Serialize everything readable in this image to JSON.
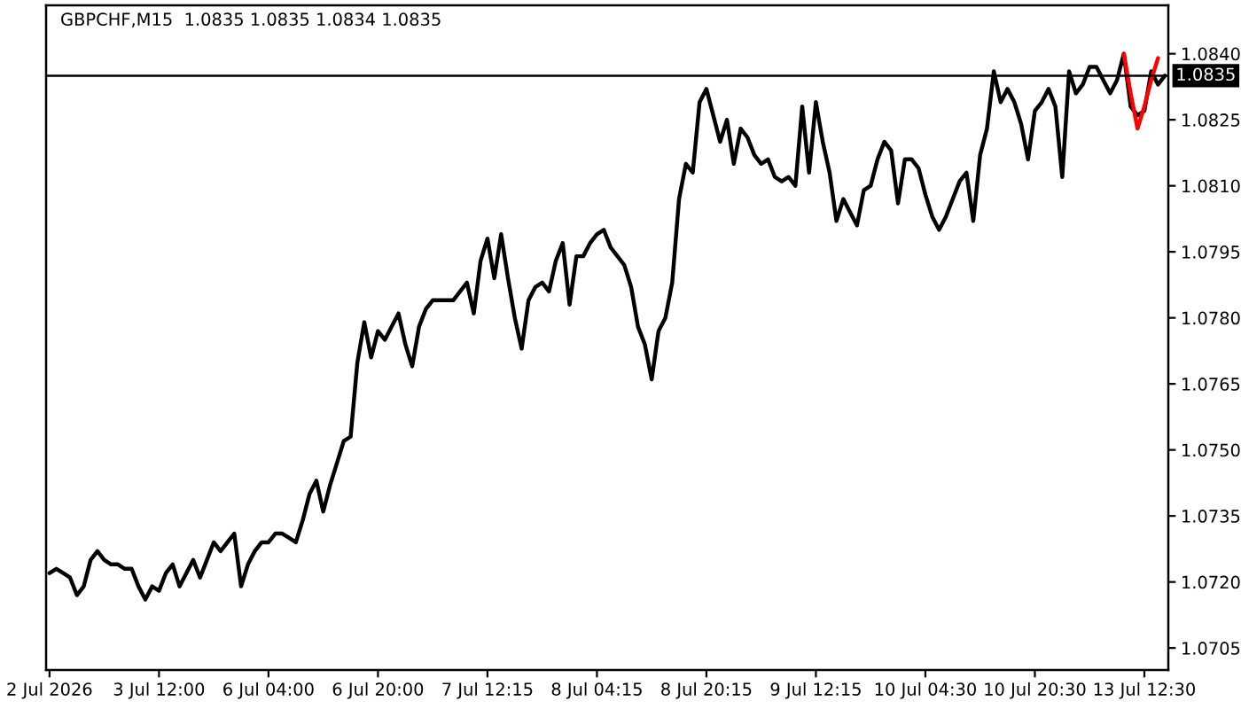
{
  "chart_data": {
    "type": "line",
    "title": "GBPCHF,M15  1.0835 1.0835 1.0834 1.0835",
    "line_style": "solid",
    "categories": [
      "2 Jul 2026",
      null,
      null,
      null,
      null,
      null,
      null,
      null,
      null,
      null,
      null,
      null,
      null,
      null,
      null,
      null,
      "3 Jul 12:00",
      null,
      null,
      null,
      null,
      null,
      null,
      null,
      null,
      null,
      null,
      null,
      null,
      null,
      null,
      null,
      "6 Jul 04:00",
      null,
      null,
      null,
      null,
      null,
      null,
      null,
      null,
      null,
      null,
      null,
      null,
      null,
      null,
      null,
      "6 Jul 20:00",
      null,
      null,
      null,
      null,
      null,
      null,
      null,
      null,
      null,
      null,
      null,
      null,
      null,
      null,
      null,
      "7 Jul 12:15",
      null,
      null,
      null,
      null,
      null,
      null,
      null,
      null,
      null,
      null,
      null,
      null,
      null,
      null,
      null,
      "8 Jul 04:15",
      null,
      null,
      null,
      null,
      null,
      null,
      null,
      null,
      null,
      null,
      null,
      null,
      null,
      null,
      null,
      "8 Jul 20:15",
      null,
      null,
      null,
      null,
      null,
      null,
      null,
      null,
      null,
      null,
      null,
      null,
      null,
      null,
      null,
      "9 Jul 12:15",
      null,
      null,
      null,
      null,
      null,
      null,
      null,
      null,
      null,
      null,
      null,
      null,
      null,
      null,
      null,
      "10 Jul 04:30",
      null,
      null,
      null,
      null,
      null,
      null,
      null,
      null,
      null,
      null,
      null,
      null,
      null,
      null,
      null,
      "10 Jul 20:30",
      null,
      null,
      null,
      null,
      null,
      null,
      null,
      null,
      null,
      null,
      null,
      null,
      null,
      null,
      null,
      "13 Jul 12:30",
      null,
      null,
      null
    ],
    "ylim": [
      1.07,
      1.0851
    ],
    "yticks": [
      {
        "value": 1.0705,
        "label": "1.0705"
      },
      {
        "value": 1.072,
        "label": "1.0720"
      },
      {
        "value": 1.0735,
        "label": "1.0735"
      },
      {
        "value": 1.075,
        "label": "1.0750"
      },
      {
        "value": 1.0765,
        "label": "1.0765"
      },
      {
        "value": 1.078,
        "label": "1.0780"
      },
      {
        "value": 1.0795,
        "label": "1.0795"
      },
      {
        "value": 1.081,
        "label": "1.0810"
      },
      {
        "value": 1.0825,
        "label": "1.0825"
      },
      {
        "value": 1.084,
        "label": "1.0840"
      }
    ],
    "ref_lines": [
      {
        "axis": "y",
        "value": 1.0835,
        "label": "1.0835",
        "color": "#000000"
      }
    ],
    "series": [
      {
        "color": "#000000",
        "values": [
          1.0722,
          1.0723,
          1.0722,
          1.0721,
          1.0717,
          1.0719,
          1.0725,
          1.0727,
          1.0725,
          1.0724,
          1.0724,
          1.0723,
          1.0723,
          1.0719,
          1.0716,
          1.0719,
          1.0718,
          1.0722,
          1.0724,
          1.0719,
          1.0722,
          1.0725,
          1.0721,
          1.0725,
          1.0729,
          1.0727,
          1.0729,
          1.0731,
          1.0719,
          1.0724,
          1.0727,
          1.0729,
          1.0729,
          1.0731,
          1.0731,
          1.073,
          1.0729,
          1.0734,
          1.074,
          1.0743,
          1.0736,
          1.0742,
          1.0747,
          1.0752,
          1.0753,
          1.077,
          1.0779,
          1.0771,
          1.0777,
          1.0775,
          1.0778,
          1.0781,
          1.0774,
          1.0769,
          1.0778,
          1.0782,
          1.0784,
          1.0784,
          1.0784,
          1.0784,
          1.0786,
          1.0788,
          1.0781,
          1.0793,
          1.0798,
          1.0789,
          1.0799,
          1.0789,
          1.078,
          1.0773,
          1.0784,
          1.0787,
          1.0788,
          1.0786,
          1.0793,
          1.0797,
          1.0783,
          1.0794,
          1.0794,
          1.0797,
          1.0799,
          1.08,
          1.0796,
          1.0794,
          1.0792,
          1.0787,
          1.0778,
          1.0774,
          1.0766,
          1.0777,
          1.078,
          1.0788,
          1.0807,
          1.0815,
          1.0813,
          1.0829,
          1.0832,
          1.0826,
          1.082,
          1.0825,
          1.0815,
          1.0823,
          1.0821,
          1.0817,
          1.0815,
          1.0816,
          1.0812,
          1.0811,
          1.0812,
          1.081,
          1.0828,
          1.0813,
          1.0829,
          1.082,
          1.0813,
          1.0802,
          1.0807,
          1.0804,
          1.0801,
          1.0809,
          1.081,
          1.0816,
          1.082,
          1.0818,
          1.0806,
          1.0816,
          1.0816,
          1.0814,
          1.0808,
          1.0803,
          1.08,
          1.0803,
          1.0807,
          1.0811,
          1.0813,
          1.0802,
          1.0817,
          1.0823,
          1.0836,
          1.0829,
          1.0832,
          1.0829,
          1.0824,
          1.0816,
          1.0827,
          1.0829,
          1.0832,
          1.0828,
          1.0812,
          1.0836,
          1.0831,
          1.0833,
          1.0837,
          1.0837,
          1.0834,
          1.0831,
          1.0834,
          1.084,
          1.0828,
          1.0826,
          1.0827,
          1.0836,
          1.0833,
          1.0835
        ]
      },
      {
        "color": "#ff0000",
        "values": [
          null,
          null,
          null,
          null,
          null,
          null,
          null,
          null,
          null,
          null,
          null,
          null,
          null,
          null,
          null,
          null,
          null,
          null,
          null,
          null,
          null,
          null,
          null,
          null,
          null,
          null,
          null,
          null,
          null,
          null,
          null,
          null,
          null,
          null,
          null,
          null,
          null,
          null,
          null,
          null,
          null,
          null,
          null,
          null,
          null,
          null,
          null,
          null,
          null,
          null,
          null,
          null,
          null,
          null,
          null,
          null,
          null,
          null,
          null,
          null,
          null,
          null,
          null,
          null,
          null,
          null,
          null,
          null,
          null,
          null,
          null,
          null,
          null,
          null,
          null,
          null,
          null,
          null,
          null,
          null,
          null,
          null,
          null,
          null,
          null,
          null,
          null,
          null,
          null,
          null,
          null,
          null,
          null,
          null,
          null,
          null,
          null,
          null,
          null,
          null,
          null,
          null,
          null,
          null,
          null,
          null,
          null,
          null,
          null,
          null,
          null,
          null,
          null,
          null,
          null,
          null,
          null,
          null,
          null,
          null,
          null,
          null,
          null,
          null,
          null,
          null,
          null,
          null,
          null,
          null,
          null,
          null,
          null,
          null,
          null,
          null,
          null,
          null,
          null,
          null,
          null,
          null,
          null,
          null,
          null,
          null,
          null,
          null,
          null,
          null,
          null,
          null,
          null,
          null,
          null,
          null,
          null,
          1.084,
          1.0831,
          1.0823,
          1.0828,
          1.0834,
          1.0839,
          null
        ]
      }
    ]
  }
}
